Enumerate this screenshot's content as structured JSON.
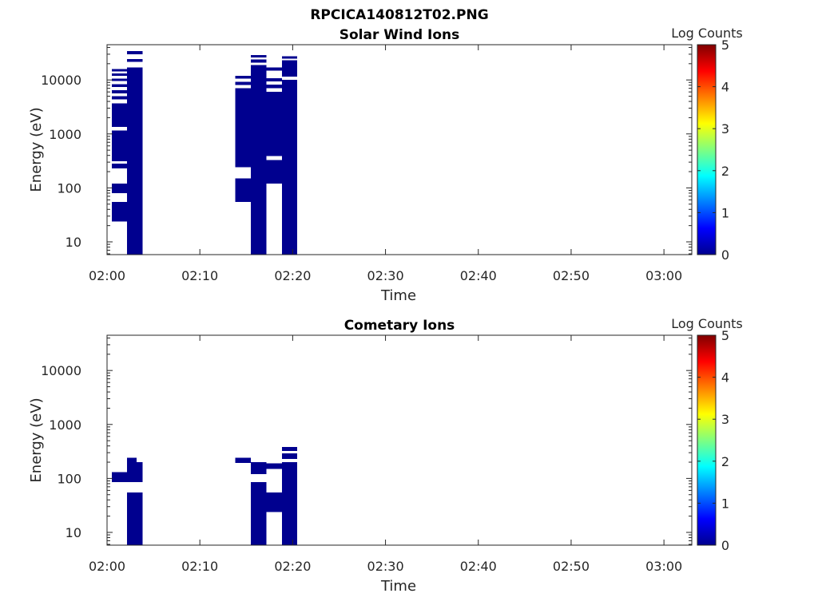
{
  "page": {
    "title": "RPCICA140812T02.PNG"
  },
  "chart_data": [
    {
      "type": "heatmap",
      "title": "Solar Wind Ions",
      "xlabel": "Time",
      "ylabel": "Energy (eV)",
      "xlim": [
        "02:00",
        "03:03"
      ],
      "xticks": [
        "02:00",
        "02:10",
        "02:20",
        "02:30",
        "02:40",
        "02:50",
        "03:00"
      ],
      "y_scale": "log",
      "ylim": [
        5.8,
        45000
      ],
      "yticks": [
        "10",
        "100",
        "1000",
        "10000"
      ],
      "colorbar": {
        "label": "Log Counts",
        "range": [
          0,
          5
        ],
        "ticks": [
          "0",
          "1",
          "2",
          "3",
          "4",
          "5"
        ]
      },
      "cells": [
        {
          "t0": "02:00:30",
          "t1": "02:02:10",
          "e0": 24,
          "e1": 55,
          "value": 0
        },
        {
          "t0": "02:00:30",
          "t1": "02:02:10",
          "e0": 80,
          "e1": 120,
          "value": 0
        },
        {
          "t0": "02:00:30",
          "t1": "02:02:10",
          "e0": 230,
          "e1": 280,
          "value": 0
        },
        {
          "t0": "02:00:30",
          "t1": "02:02:10",
          "e0": 310,
          "e1": 1150,
          "value": 0
        },
        {
          "t0": "02:00:30",
          "t1": "02:02:10",
          "e0": 1350,
          "e1": 3700,
          "value": 0
        },
        {
          "t0": "02:00:30",
          "t1": "02:02:10",
          "e0": 4400,
          "e1": 5000,
          "value": 0
        },
        {
          "t0": "02:00:30",
          "t1": "02:02:10",
          "e0": 5600,
          "e1": 6500,
          "value": 0
        },
        {
          "t0": "02:00:30",
          "t1": "02:02:10",
          "e0": 7400,
          "e1": 8300,
          "value": 0
        },
        {
          "t0": "02:00:30",
          "t1": "02:02:10",
          "e0": 9500,
          "e1": 10500,
          "value": 0
        },
        {
          "t0": "02:00:30",
          "t1": "02:02:10",
          "e0": 12000,
          "e1": 13300,
          "value": 0
        },
        {
          "t0": "02:00:30",
          "t1": "02:02:10",
          "e0": 14500,
          "e1": 16000,
          "value": 0
        },
        {
          "t0": "02:02:10",
          "t1": "02:03:50",
          "e0": 5.8,
          "e1": 17000,
          "value": 0
        },
        {
          "t0": "02:02:10",
          "t1": "02:03:50",
          "e0": 21500,
          "e1": 24500,
          "value": 0
        },
        {
          "t0": "02:02:10",
          "t1": "02:03:50",
          "e0": 30000,
          "e1": 34000,
          "value": 0
        },
        {
          "t0": "02:13:50",
          "t1": "02:15:30",
          "e0": 55,
          "e1": 150,
          "value": 0
        },
        {
          "t0": "02:13:50",
          "t1": "02:15:30",
          "e0": 240,
          "e1": 7000,
          "value": 0
        },
        {
          "t0": "02:13:50",
          "t1": "02:15:30",
          "e0": 8000,
          "e1": 9200,
          "value": 0
        },
        {
          "t0": "02:13:50",
          "t1": "02:15:30",
          "e0": 10500,
          "e1": 12000,
          "value": 0
        },
        {
          "t0": "02:15:30",
          "t1": "02:17:10",
          "e0": 5.8,
          "e1": 19000,
          "value": 0
        },
        {
          "t0": "02:15:30",
          "t1": "02:17:10",
          "e0": 21000,
          "e1": 24000,
          "value": 0
        },
        {
          "t0": "02:15:30",
          "t1": "02:17:10",
          "e0": 26000,
          "e1": 29000,
          "value": 0
        },
        {
          "t0": "02:17:10",
          "t1": "02:18:50",
          "e0": 120,
          "e1": 330,
          "value": 0
        },
        {
          "t0": "02:17:10",
          "t1": "02:18:50",
          "e0": 390,
          "e1": 6000,
          "value": 0
        },
        {
          "t0": "02:17:10",
          "t1": "02:18:50",
          "e0": 7000,
          "e1": 8200,
          "value": 0
        },
        {
          "t0": "02:17:10",
          "t1": "02:18:50",
          "e0": 9400,
          "e1": 10800,
          "value": 0
        },
        {
          "t0": "02:17:10",
          "t1": "02:18:50",
          "e0": 15000,
          "e1": 17000,
          "value": 0
        },
        {
          "t0": "02:18:50",
          "t1": "02:20:30",
          "e0": 5.8,
          "e1": 10000,
          "value": 0
        },
        {
          "t0": "02:18:50",
          "t1": "02:20:30",
          "e0": 11500,
          "e1": 23000,
          "value": 0
        },
        {
          "t0": "02:18:50",
          "t1": "02:20:30",
          "e0": 25000,
          "e1": 27500,
          "value": 0
        }
      ]
    },
    {
      "type": "heatmap",
      "title": "Cometary Ions",
      "xlabel": "Time",
      "ylabel": "Energy (eV)",
      "xlim": [
        "02:00",
        "03:03"
      ],
      "xticks": [
        "02:00",
        "02:10",
        "02:20",
        "02:30",
        "02:40",
        "02:50",
        "03:00"
      ],
      "y_scale": "log",
      "ylim": [
        5.8,
        45000
      ],
      "yticks": [
        "10",
        "100",
        "1000",
        "10000"
      ],
      "colorbar": {
        "label": "Log Counts",
        "range": [
          0,
          5
        ],
        "ticks": [
          "0",
          "1",
          "2",
          "3",
          "4",
          "5"
        ]
      },
      "cells": [
        {
          "t0": "02:00:30",
          "t1": "02:02:10",
          "e0": 85,
          "e1": 130,
          "value": 0
        },
        {
          "t0": "02:02:10",
          "t1": "02:03:50",
          "e0": 5.8,
          "e1": 55,
          "value": 0
        },
        {
          "t0": "02:02:10",
          "t1": "02:03:50",
          "e0": 85,
          "e1": 200,
          "value": 0
        },
        {
          "t0": "02:02:10",
          "t1": "02:03:10",
          "e0": 200,
          "e1": 240,
          "value": 0
        },
        {
          "t0": "02:13:50",
          "t1": "02:15:30",
          "e0": 195,
          "e1": 240,
          "value": 0
        },
        {
          "t0": "02:15:30",
          "t1": "02:17:10",
          "e0": 5.8,
          "e1": 85,
          "value": 0
        },
        {
          "t0": "02:15:30",
          "t1": "02:17:10",
          "e0": 120,
          "e1": 200,
          "value": 0
        },
        {
          "t0": "02:17:10",
          "t1": "02:18:50",
          "e0": 24,
          "e1": 55,
          "value": 0
        },
        {
          "t0": "02:17:10",
          "t1": "02:18:50",
          "e0": 150,
          "e1": 190,
          "value": 0
        },
        {
          "t0": "02:18:50",
          "t1": "02:20:30",
          "e0": 5.8,
          "e1": 200,
          "value": 0
        },
        {
          "t0": "02:18:50",
          "t1": "02:20:30",
          "e0": 230,
          "e1": 290,
          "value": 0
        },
        {
          "t0": "02:18:50",
          "t1": "02:20:30",
          "e0": 320,
          "e1": 380,
          "value": 0
        }
      ]
    }
  ]
}
